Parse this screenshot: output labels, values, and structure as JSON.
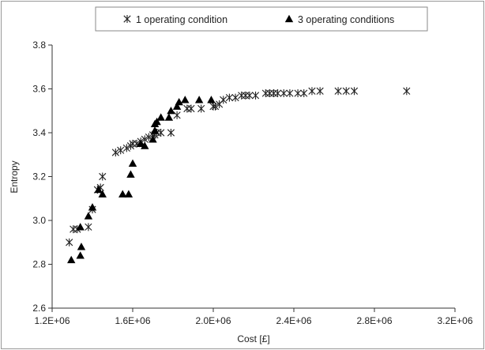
{
  "chart_data": {
    "type": "scatter",
    "xlabel": "Cost [£]",
    "ylabel": "Entropy",
    "xlim": [
      1200000,
      3200000
    ],
    "ylim": [
      2.6,
      3.8
    ],
    "x_ticks": [
      1200000,
      1600000,
      2000000,
      2400000,
      2800000,
      3200000
    ],
    "x_tick_labels": [
      "1.2E+06",
      "1.6E+06",
      "2.0E+06",
      "2.4E+06",
      "2.8E+06",
      "3.2E+06"
    ],
    "y_ticks": [
      2.6,
      2.8,
      3.0,
      3.2,
      3.4,
      3.6,
      3.8
    ],
    "y_tick_labels": [
      "2.6",
      "2.8",
      "3.0",
      "3.2",
      "3.4",
      "3.6",
      "3.8"
    ],
    "grid": false,
    "legend_position": "top-center",
    "series": [
      {
        "name": "1 operating condition",
        "marker": "asterisk",
        "color": "#222222",
        "points": [
          [
            1285000,
            2.9
          ],
          [
            1305000,
            2.96
          ],
          [
            1325000,
            2.96
          ],
          [
            1380000,
            2.97
          ],
          [
            1400000,
            3.05
          ],
          [
            1425000,
            3.14
          ],
          [
            1440000,
            3.15
          ],
          [
            1450000,
            3.2
          ],
          [
            1515000,
            3.31
          ],
          [
            1540000,
            3.32
          ],
          [
            1570000,
            3.33
          ],
          [
            1590000,
            3.34
          ],
          [
            1600000,
            3.35
          ],
          [
            1620000,
            3.35
          ],
          [
            1640000,
            3.36
          ],
          [
            1660000,
            3.37
          ],
          [
            1680000,
            3.38
          ],
          [
            1700000,
            3.39
          ],
          [
            1710000,
            3.39
          ],
          [
            1720000,
            3.4
          ],
          [
            1740000,
            3.4
          ],
          [
            1790000,
            3.4
          ],
          [
            1820000,
            3.48
          ],
          [
            1870000,
            3.51
          ],
          [
            1890000,
            3.51
          ],
          [
            1940000,
            3.51
          ],
          [
            2000000,
            3.52
          ],
          [
            2010000,
            3.52
          ],
          [
            2030000,
            3.53
          ],
          [
            2050000,
            3.55
          ],
          [
            2080000,
            3.56
          ],
          [
            2110000,
            3.56
          ],
          [
            2140000,
            3.57
          ],
          [
            2160000,
            3.57
          ],
          [
            2180000,
            3.57
          ],
          [
            2210000,
            3.57
          ],
          [
            2260000,
            3.58
          ],
          [
            2280000,
            3.58
          ],
          [
            2300000,
            3.58
          ],
          [
            2320000,
            3.58
          ],
          [
            2350000,
            3.58
          ],
          [
            2380000,
            3.58
          ],
          [
            2420000,
            3.58
          ],
          [
            2450000,
            3.58
          ],
          [
            2490000,
            3.59
          ],
          [
            2530000,
            3.59
          ],
          [
            2620000,
            3.59
          ],
          [
            2660000,
            3.59
          ],
          [
            2700000,
            3.59
          ],
          [
            2960000,
            3.59
          ]
        ]
      },
      {
        "name": "3 operating conditions",
        "marker": "triangle",
        "color": "#000000",
        "points": [
          [
            1295000,
            2.82
          ],
          [
            1340000,
            2.84
          ],
          [
            1345000,
            2.88
          ],
          [
            1340000,
            2.97
          ],
          [
            1380000,
            3.02
          ],
          [
            1400000,
            3.06
          ],
          [
            1430000,
            3.14
          ],
          [
            1450000,
            3.12
          ],
          [
            1550000,
            3.12
          ],
          [
            1580000,
            3.12
          ],
          [
            1590000,
            3.21
          ],
          [
            1600000,
            3.26
          ],
          [
            1640000,
            3.35
          ],
          [
            1660000,
            3.34
          ],
          [
            1700000,
            3.37
          ],
          [
            1710000,
            3.41
          ],
          [
            1710000,
            3.44
          ],
          [
            1720000,
            3.45
          ],
          [
            1740000,
            3.47
          ],
          [
            1780000,
            3.47
          ],
          [
            1790000,
            3.5
          ],
          [
            1820000,
            3.52
          ],
          [
            1830000,
            3.54
          ],
          [
            1860000,
            3.55
          ],
          [
            1930000,
            3.55
          ],
          [
            1990000,
            3.55
          ]
        ]
      }
    ]
  }
}
